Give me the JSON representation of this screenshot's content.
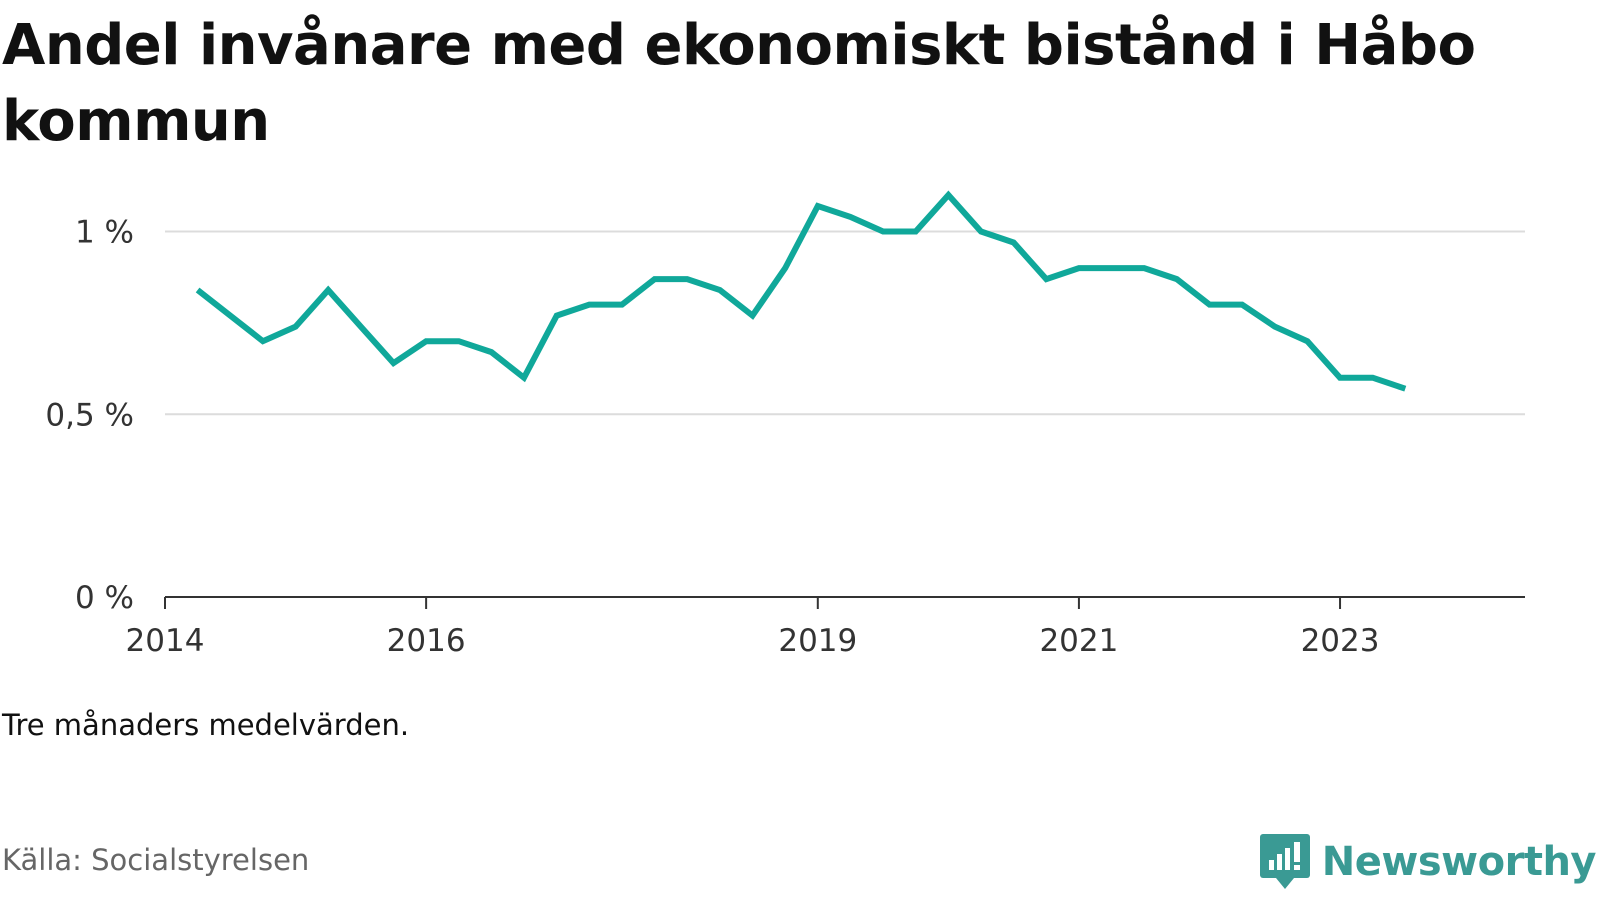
{
  "title": "Andel invånare med ekonomiskt bistånd i Håbo kommun",
  "note": "Tre månaders medelvärden.",
  "source": "Källa: Socialstyrelsen",
  "brand": {
    "name": "Newsworthy",
    "icon": "newsworthy-logo-icon",
    "color": "#3a9a94"
  },
  "chart_data": {
    "type": "line",
    "title": "Andel invånare med ekonomiskt bistånd i Håbo kommun",
    "xlabel": "",
    "ylabel": "",
    "line_color": "#10a89a",
    "grid": true,
    "xlim": [
      "2014-01",
      "2024-06"
    ],
    "ylim": [
      0,
      1.1
    ],
    "y_ticks": [
      {
        "value": 0,
        "label": "0 %"
      },
      {
        "value": 0.5,
        "label": "0,5 %"
      },
      {
        "value": 1,
        "label": "1 %"
      }
    ],
    "x_ticks": [
      {
        "value": "2014-01",
        "label": "2014"
      },
      {
        "value": "2016-01",
        "label": "2016"
      },
      {
        "value": "2019-01",
        "label": "2019"
      },
      {
        "value": "2021-01",
        "label": "2021"
      },
      {
        "value": "2023-01",
        "label": "2023"
      }
    ],
    "series": [
      {
        "name": "",
        "x": [
          "2014-04",
          "2014-07",
          "2014-10",
          "2015-01",
          "2015-04",
          "2015-07",
          "2015-10",
          "2016-01",
          "2016-04",
          "2016-07",
          "2016-10",
          "2017-01",
          "2017-04",
          "2017-07",
          "2017-10",
          "2018-01",
          "2018-04",
          "2018-07",
          "2018-10",
          "2019-01",
          "2019-04",
          "2019-07",
          "2019-10",
          "2020-01",
          "2020-04",
          "2020-07",
          "2020-10",
          "2021-01",
          "2021-04",
          "2021-07",
          "2021-10",
          "2022-01",
          "2022-04",
          "2022-07",
          "2022-10",
          "2023-01",
          "2023-04",
          "2023-07"
        ],
        "values": [
          0.84,
          0.77,
          0.7,
          0.74,
          0.84,
          0.74,
          0.64,
          0.7,
          0.7,
          0.67,
          0.6,
          0.77,
          0.8,
          0.8,
          0.87,
          0.87,
          0.84,
          0.77,
          0.9,
          1.07,
          1.04,
          1.0,
          1.0,
          1.1,
          1.0,
          0.97,
          0.87,
          0.9,
          0.9,
          0.9,
          0.87,
          0.8,
          0.8,
          0.74,
          0.7,
          0.6,
          0.6,
          0.57
        ]
      }
    ]
  }
}
